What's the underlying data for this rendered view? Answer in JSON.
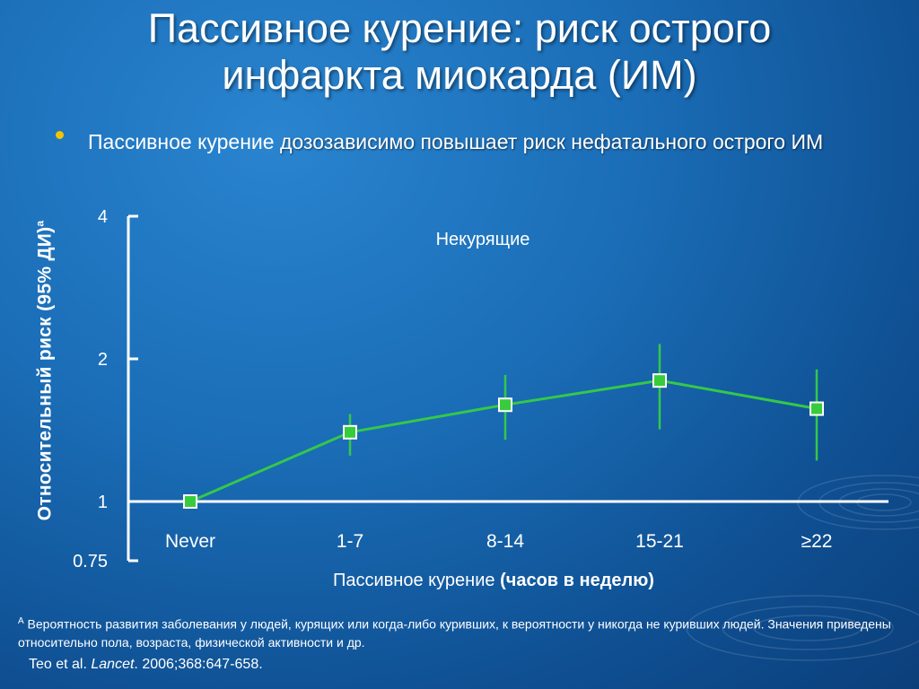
{
  "slide": {
    "title_line1": "Пассивное курение: риск острого",
    "title_line2": "инфаркта миокарда (ИМ)",
    "bullet_part1": "Пассивное курение ",
    "bullet_part2": "дозозависимо повышает риск нефатального острого ИМ"
  },
  "chart_data": {
    "type": "line",
    "title": "Некурящие",
    "ylabel_main": "Относительный риск  (95% ДИ)",
    "ylabel_sup": "a",
    "xlabel_main": "Пассивное курение ",
    "xlabel_bold": "(часов в неделю)",
    "y_scale": "log",
    "ylim": [
      0.75,
      4
    ],
    "yticks": [
      0.75,
      1,
      2,
      4
    ],
    "ytick_labels": [
      "0.75",
      "1",
      "2",
      "4"
    ],
    "reference_line": 1,
    "categories": [
      "Never",
      "1-7",
      "8-14",
      "15-21",
      "≥22"
    ],
    "series": [
      {
        "values": [
          1.0,
          1.4,
          1.6,
          1.8,
          1.57
        ],
        "ci_low": [
          null,
          1.25,
          1.35,
          1.42,
          1.22
        ],
        "ci_high": [
          null,
          1.53,
          1.85,
          2.15,
          1.9
        ]
      }
    ],
    "line_color": "#34c84a",
    "marker_color": "#38cc3c",
    "grid": false
  },
  "footnote": {
    "marker": "A",
    "text": " Вероятность развития заболевания у людей, курящих или когда-либо куривших, к вероятности у никогда не куривших людей. Значения приведены относительно пола, возраста, физической активности  и др."
  },
  "citation": {
    "authors": "Teo et al. ",
    "journal": "Lancet",
    "rest": ". 2006;368:647-658."
  },
  "colors": {
    "background": "#1a6db6",
    "bullet": "#f2c400",
    "text": "#ffffff"
  }
}
